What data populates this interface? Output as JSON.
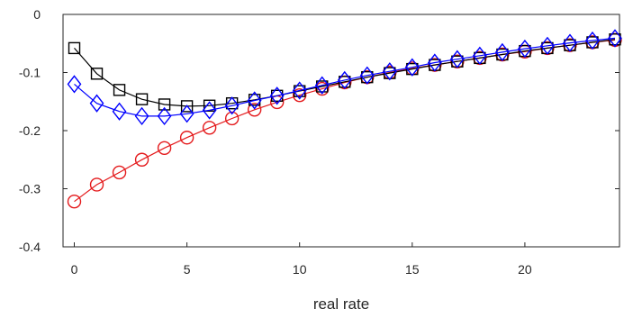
{
  "chart_data": {
    "type": "line",
    "title": "",
    "xlabel": "real rate",
    "ylabel": "",
    "xlim": [
      -0.5,
      24.2
    ],
    "ylim": [
      -0.4,
      0
    ],
    "grid": false,
    "legend": "none",
    "x_ticks": [
      0,
      5,
      10,
      15,
      20
    ],
    "x_tick_labels": [
      "0",
      "5",
      "10",
      "15",
      "20"
    ],
    "y_ticks": [
      0,
      -0.1,
      -0.2,
      -0.3,
      -0.4
    ],
    "y_tick_labels": [
      "0",
      "-0.1",
      "-0.2",
      "-0.3",
      "-0.4"
    ],
    "x": [
      0,
      1,
      2,
      3,
      4,
      5,
      6,
      7,
      8,
      9,
      10,
      11,
      12,
      13,
      14,
      15,
      16,
      17,
      18,
      19,
      20,
      21,
      22,
      23,
      24
    ],
    "series": [
      {
        "color": "#e41a1c",
        "marker": "circle",
        "values": [
          -0.322,
          -0.293,
          -0.272,
          -0.25,
          -0.23,
          -0.212,
          -0.195,
          -0.179,
          -0.164,
          -0.151,
          -0.139,
          -0.128,
          -0.117,
          -0.108,
          -0.1,
          -0.093,
          -0.087,
          -0.081,
          -0.075,
          -0.069,
          -0.064,
          -0.058,
          -0.053,
          -0.048,
          -0.044
        ]
      },
      {
        "color": "#000000",
        "marker": "square",
        "values": [
          -0.058,
          -0.102,
          -0.13,
          -0.146,
          -0.155,
          -0.158,
          -0.157,
          -0.153,
          -0.147,
          -0.14,
          -0.132,
          -0.124,
          -0.116,
          -0.108,
          -0.101,
          -0.094,
          -0.087,
          -0.081,
          -0.075,
          -0.069,
          -0.063,
          -0.058,
          -0.053,
          -0.048,
          -0.043
        ]
      },
      {
        "color": "#0000ff",
        "marker": "diamond",
        "values": [
          -0.12,
          -0.153,
          -0.167,
          -0.175,
          -0.175,
          -0.171,
          -0.165,
          -0.157,
          -0.148,
          -0.14,
          -0.131,
          -0.122,
          -0.113,
          -0.105,
          -0.098,
          -0.091,
          -0.083,
          -0.077,
          -0.071,
          -0.065,
          -0.059,
          -0.054,
          -0.049,
          -0.045,
          -0.041
        ]
      }
    ]
  }
}
